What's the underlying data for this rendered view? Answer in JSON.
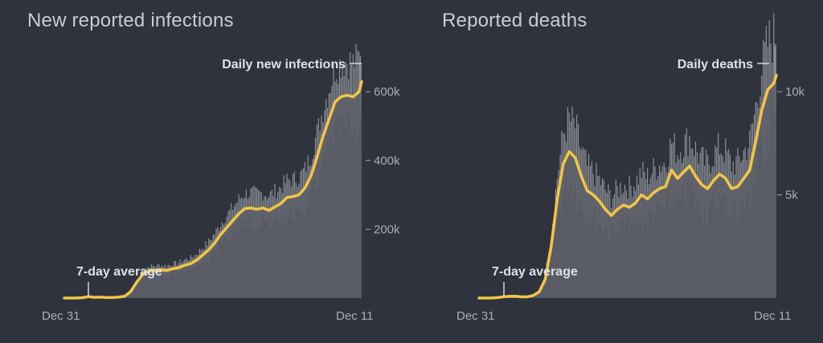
{
  "charts": {
    "infections": {
      "title": "New reported infections"
    },
    "deaths": {
      "title": "Reported deaths"
    }
  },
  "colors": {
    "background": "#2f333d",
    "area": "#5e6169",
    "spikes": "#8c8f96",
    "average": "#f3c644",
    "text": "#c9ccd1"
  },
  "chart_data": [
    {
      "type": "area",
      "title": "New reported infections",
      "x_range": [
        "2019-12-31",
        "2020-12-11"
      ],
      "x_tick_labels": [
        "Dec 31",
        "Dec 11"
      ],
      "y_ticks": [
        200000,
        400000,
        600000
      ],
      "y_tick_labels": [
        "200k",
        "400k",
        "600k"
      ],
      "ylim": [
        0,
        750000
      ],
      "annotations": [
        "Daily new infections",
        "7-day average"
      ],
      "series": [
        {
          "name": "7-day average",
          "x": [
            "2019-12-31",
            "2020-01-07",
            "2020-01-14",
            "2020-01-21",
            "2020-01-28",
            "2020-02-04",
            "2020-02-11",
            "2020-02-18",
            "2020-02-25",
            "2020-03-03",
            "2020-03-10",
            "2020-03-17",
            "2020-03-24",
            "2020-03-31",
            "2020-04-07",
            "2020-04-14",
            "2020-04-21",
            "2020-04-28",
            "2020-05-05",
            "2020-05-12",
            "2020-05-19",
            "2020-05-26",
            "2020-06-02",
            "2020-06-09",
            "2020-06-16",
            "2020-06-23",
            "2020-06-30",
            "2020-07-07",
            "2020-07-14",
            "2020-07-21",
            "2020-07-28",
            "2020-08-04",
            "2020-08-11",
            "2020-08-18",
            "2020-08-25",
            "2020-09-01",
            "2020-09-08",
            "2020-09-15",
            "2020-09-22",
            "2020-09-29",
            "2020-10-06",
            "2020-10-13",
            "2020-10-20",
            "2020-10-27",
            "2020-11-03",
            "2020-11-10",
            "2020-11-17",
            "2020-11-24",
            "2020-12-01",
            "2020-12-08",
            "2020-12-11"
          ],
          "values": [
            0,
            0,
            0,
            1000,
            4000,
            2000,
            2500,
            1500,
            1500,
            2500,
            5000,
            18000,
            45000,
            68000,
            78000,
            80000,
            82000,
            80000,
            85000,
            88000,
            95000,
            100000,
            110000,
            125000,
            140000,
            160000,
            185000,
            205000,
            225000,
            245000,
            260000,
            262000,
            258000,
            262000,
            255000,
            265000,
            275000,
            292000,
            295000,
            300000,
            320000,
            355000,
            410000,
            470000,
            520000,
            570000,
            585000,
            590000,
            585000,
            600000,
            630000
          ]
        }
      ]
    },
    {
      "type": "area",
      "title": "Reported deaths",
      "x_range": [
        "2019-12-31",
        "2020-12-11"
      ],
      "x_tick_labels": [
        "Dec 31",
        "Dec 11"
      ],
      "y_ticks": [
        5000,
        10000
      ],
      "y_tick_labels": [
        "5k",
        "10k"
      ],
      "ylim": [
        0,
        12500
      ],
      "annotations": [
        "Daily deaths",
        "7-day average"
      ],
      "series": [
        {
          "name": "7-day average",
          "x": [
            "2019-12-31",
            "2020-01-07",
            "2020-01-14",
            "2020-01-21",
            "2020-01-28",
            "2020-02-04",
            "2020-02-11",
            "2020-02-18",
            "2020-02-25",
            "2020-03-03",
            "2020-03-10",
            "2020-03-17",
            "2020-03-24",
            "2020-03-31",
            "2020-04-07",
            "2020-04-14",
            "2020-04-21",
            "2020-04-28",
            "2020-05-05",
            "2020-05-12",
            "2020-05-19",
            "2020-05-26",
            "2020-06-02",
            "2020-06-09",
            "2020-06-16",
            "2020-06-23",
            "2020-06-30",
            "2020-07-07",
            "2020-07-14",
            "2020-07-21",
            "2020-07-28",
            "2020-08-04",
            "2020-08-11",
            "2020-08-18",
            "2020-08-25",
            "2020-09-01",
            "2020-09-08",
            "2020-09-15",
            "2020-09-22",
            "2020-09-29",
            "2020-10-06",
            "2020-10-13",
            "2020-10-20",
            "2020-10-27",
            "2020-11-03",
            "2020-11-10",
            "2020-11-17",
            "2020-11-24",
            "2020-12-01",
            "2020-12-08",
            "2020-12-11"
          ],
          "values": [
            0,
            0,
            0,
            20,
            60,
            80,
            90,
            60,
            60,
            120,
            300,
            900,
            2500,
            4800,
            6500,
            7100,
            6800,
            5900,
            5200,
            5000,
            4700,
            4300,
            4000,
            4300,
            4500,
            4400,
            4600,
            5000,
            4800,
            5100,
            5300,
            5400,
            6200,
            5800,
            6100,
            6400,
            5900,
            5500,
            5300,
            5700,
            6000,
            5800,
            5300,
            5400,
            5800,
            6200,
            7600,
            9100,
            10100,
            10400,
            10800
          ]
        }
      ]
    }
  ]
}
